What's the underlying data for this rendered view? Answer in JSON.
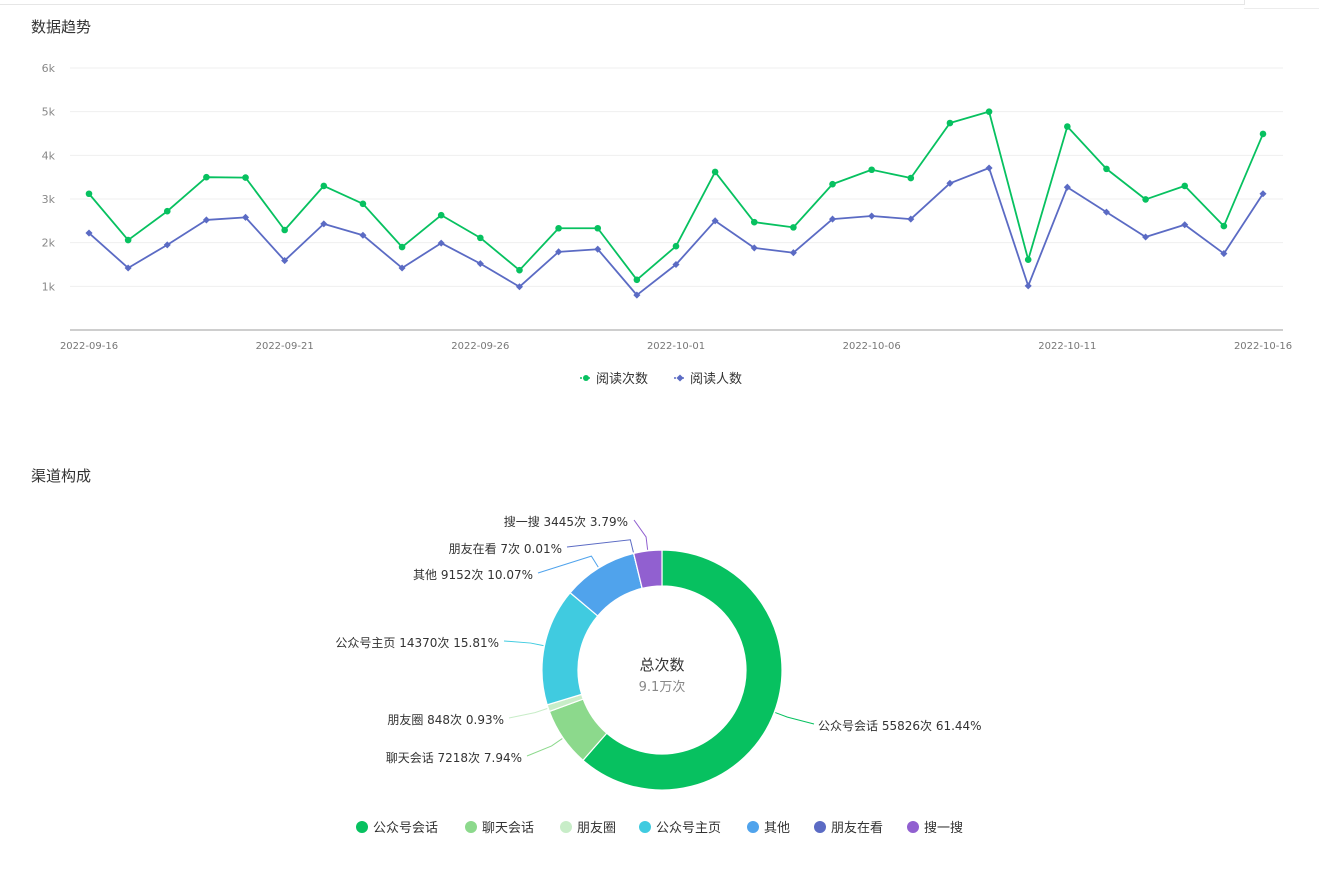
{
  "trend": {
    "title": "数据趋势",
    "chart_data": {
      "type": "line",
      "x": [
        "2022-09-16",
        "2022-09-17",
        "2022-09-18",
        "2022-09-19",
        "2022-09-20",
        "2022-09-21",
        "2022-09-22",
        "2022-09-23",
        "2022-09-24",
        "2022-09-25",
        "2022-09-26",
        "2022-09-27",
        "2022-09-28",
        "2022-09-29",
        "2022-09-30",
        "2022-10-01",
        "2022-10-02",
        "2022-10-03",
        "2022-10-04",
        "2022-10-05",
        "2022-10-06",
        "2022-10-07",
        "2022-10-08",
        "2022-10-09",
        "2022-10-10",
        "2022-10-11",
        "2022-10-12",
        "2022-10-13",
        "2022-10-14",
        "2022-10-15",
        "2022-10-16"
      ],
      "x_tick_labels": [
        "2022-09-16",
        "2022-09-21",
        "2022-09-26",
        "2022-10-01",
        "2022-10-06",
        "2022-10-11",
        "2022-10-16"
      ],
      "y_ticks": [
        {
          "value": 1000,
          "label": "1k"
        },
        {
          "value": 2000,
          "label": "2k"
        },
        {
          "value": 3000,
          "label": "3k"
        },
        {
          "value": 4000,
          "label": "4k"
        },
        {
          "value": 5000,
          "label": "5k"
        },
        {
          "value": 6000,
          "label": "6k"
        }
      ],
      "ylim": [
        0,
        6000
      ],
      "grid": true,
      "legend_position": "bottom",
      "series": [
        {
          "name": "阅读次数",
          "color": "#07c160",
          "marker": "circle",
          "values": [
            3120,
            2060,
            2720,
            3500,
            3490,
            2290,
            3300,
            2890,
            1900,
            2630,
            2110,
            1370,
            2330,
            2330,
            1150,
            1920,
            3620,
            2470,
            2350,
            3340,
            3670,
            3480,
            4740,
            5000,
            1610,
            4660,
            3690,
            2990,
            3300,
            2380,
            4490
          ]
        },
        {
          "name": "阅读人数",
          "color": "#5b6bc4",
          "marker": "diamond",
          "values": [
            2220,
            1420,
            1950,
            2520,
            2580,
            1590,
            2430,
            2170,
            1420,
            1990,
            1520,
            990,
            1790,
            1850,
            800,
            1500,
            2500,
            1880,
            1770,
            2540,
            2610,
            2540,
            3360,
            3710,
            1010,
            3270,
            2700,
            2130,
            2410,
            1750,
            3120
          ]
        }
      ]
    }
  },
  "channel": {
    "title": "渠道构成",
    "center_title": "总次数",
    "center_value": "9.1万次",
    "chart_data": {
      "type": "pie",
      "legend_position": "bottom",
      "slices": [
        {
          "name": "公众号会话",
          "value": 55826,
          "count_text": "55826次",
          "percent": "61.44%",
          "color": "#07c160"
        },
        {
          "name": "聊天会话",
          "value": 7218,
          "count_text": "7218次",
          "percent": "7.94%",
          "color": "#8cd98c"
        },
        {
          "name": "朋友圈",
          "value": 848,
          "count_text": "848次",
          "percent": "0.93%",
          "color": "#c8edc8"
        },
        {
          "name": "公众号主页",
          "value": 14370,
          "count_text": "14370次",
          "percent": "15.81%",
          "color": "#40cbe0"
        },
        {
          "name": "其他",
          "value": 9152,
          "count_text": "9152次",
          "percent": "10.07%",
          "color": "#50a3ec"
        },
        {
          "name": "朋友在看",
          "value": 7,
          "count_text": "7次",
          "percent": "0.01%",
          "color": "#5b6bc4"
        },
        {
          "name": "搜一搜",
          "value": 3445,
          "count_text": "3445次",
          "percent": "3.79%",
          "color": "#9160d0"
        }
      ]
    }
  }
}
